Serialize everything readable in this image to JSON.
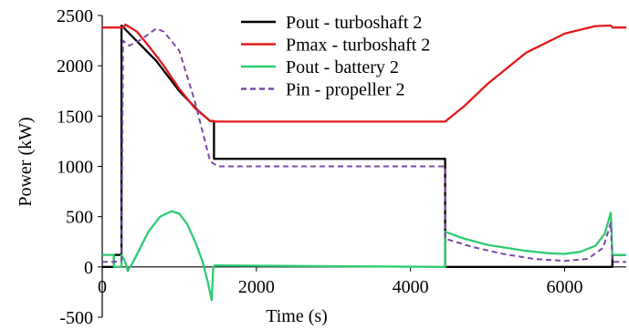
{
  "chart_data": {
    "type": "line",
    "title": "",
    "xlabel": "Time (s)",
    "ylabel": "Power (kW)",
    "xlim": [
      0,
      6800
    ],
    "ylim": [
      -500,
      2500
    ],
    "xticks": [
      0,
      2000,
      4000,
      6000
    ],
    "yticks": [
      -500,
      0,
      500,
      1000,
      1500,
      2000,
      2500
    ],
    "xtick_labels": [
      "0",
      "2000",
      "4000",
      "6000"
    ],
    "ytick_labels": [
      "-500",
      "0",
      "500",
      "1000",
      "1500",
      "2000",
      "2500"
    ],
    "grid": false,
    "legend_position": "top-right",
    "series": [
      {
        "name": "Pout - turboshaft 2",
        "color": "#000000",
        "style": "solid",
        "points": [
          [
            0,
            0
          ],
          [
            150,
            0
          ],
          [
            150,
            120
          ],
          [
            250,
            120
          ],
          [
            250,
            2400
          ],
          [
            700,
            2050
          ],
          [
            1000,
            1750
          ],
          [
            1250,
            1550
          ],
          [
            1400,
            1450
          ],
          [
            1450,
            1450
          ],
          [
            1450,
            1075
          ],
          [
            4450,
            1075
          ],
          [
            4450,
            0
          ],
          [
            6620,
            0
          ],
          [
            6620,
            120
          ],
          [
            6800,
            120
          ]
        ]
      },
      {
        "name": "Pmax - turboshaft 2",
        "color": "#e31a1c",
        "style": "solid",
        "points": [
          [
            0,
            2380
          ],
          [
            280,
            2380
          ],
          [
            300,
            2410
          ],
          [
            450,
            2340
          ],
          [
            600,
            2200
          ],
          [
            800,
            2000
          ],
          [
            1000,
            1770
          ],
          [
            1200,
            1580
          ],
          [
            1400,
            1450
          ],
          [
            1500,
            1445
          ],
          [
            4450,
            1445
          ],
          [
            4700,
            1600
          ],
          [
            5000,
            1820
          ],
          [
            5500,
            2130
          ],
          [
            6000,
            2320
          ],
          [
            6400,
            2395
          ],
          [
            6600,
            2400
          ],
          [
            6620,
            2380
          ],
          [
            6800,
            2380
          ]
        ]
      },
      {
        "name": "Pout - battery 2",
        "color": "#2ecc71",
        "style": "solid",
        "points": [
          [
            0,
            120
          ],
          [
            150,
            120
          ],
          [
            150,
            0
          ],
          [
            250,
            0
          ],
          [
            250,
            120
          ],
          [
            300,
            50
          ],
          [
            330,
            -40
          ],
          [
            400,
            50
          ],
          [
            500,
            200
          ],
          [
            600,
            350
          ],
          [
            750,
            500
          ],
          [
            900,
            555
          ],
          [
            1000,
            530
          ],
          [
            1100,
            430
          ],
          [
            1200,
            260
          ],
          [
            1300,
            60
          ],
          [
            1370,
            -150
          ],
          [
            1420,
            -330
          ],
          [
            1440,
            0
          ],
          [
            1460,
            15
          ],
          [
            4450,
            0
          ],
          [
            4450,
            350
          ],
          [
            4700,
            280
          ],
          [
            5000,
            220
          ],
          [
            5500,
            160
          ],
          [
            5800,
            135
          ],
          [
            6000,
            130
          ],
          [
            6200,
            150
          ],
          [
            6400,
            210
          ],
          [
            6520,
            330
          ],
          [
            6600,
            540
          ],
          [
            6620,
            120
          ],
          [
            6800,
            120
          ]
        ]
      },
      {
        "name": "Pin - propeller 2",
        "color": "#7b4ba8",
        "style": "dashed",
        "points": [
          [
            0,
            50
          ],
          [
            150,
            50
          ],
          [
            250,
            60
          ],
          [
            270,
            2250
          ],
          [
            350,
            2200
          ],
          [
            500,
            2260
          ],
          [
            700,
            2370
          ],
          [
            800,
            2340
          ],
          [
            1000,
            2150
          ],
          [
            1200,
            1650
          ],
          [
            1400,
            1050
          ],
          [
            1500,
            1000
          ],
          [
            4450,
            1000
          ],
          [
            4450,
            280
          ],
          [
            4800,
            200
          ],
          [
            5200,
            130
          ],
          [
            5600,
            80
          ],
          [
            6000,
            60
          ],
          [
            6300,
            80
          ],
          [
            6500,
            190
          ],
          [
            6600,
            440
          ],
          [
            6620,
            50
          ],
          [
            6800,
            50
          ]
        ]
      }
    ]
  }
}
